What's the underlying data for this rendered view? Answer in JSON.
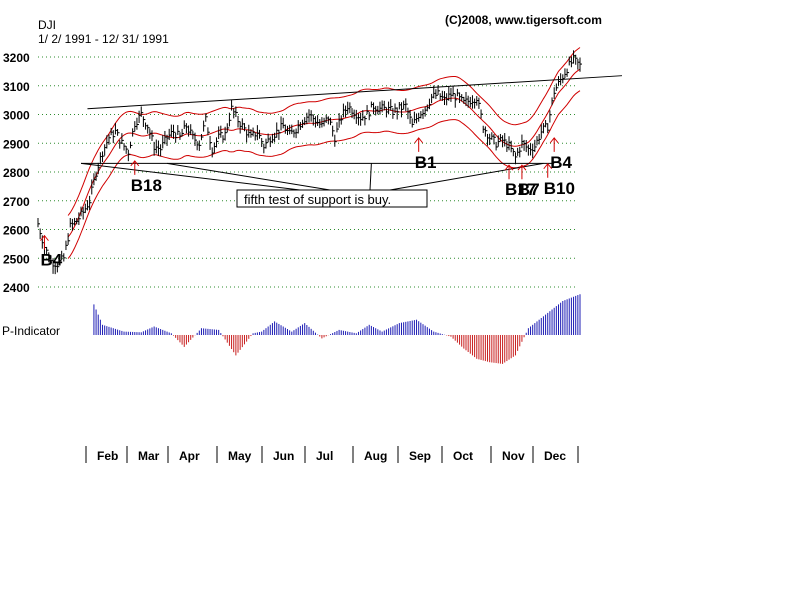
{
  "chart_data": {
    "type": "line",
    "symbol": "DJI",
    "date_range": "1/ 2/ 1991 - 12/ 31/ 1991",
    "copyright": "(C)2008, www.tigersoft.com",
    "ylim": [
      2370,
      3220
    ],
    "y_ticks": [
      2400,
      2500,
      2600,
      2700,
      2800,
      2900,
      3000,
      3100,
      3200
    ],
    "months": [
      "Feb",
      "Mar",
      "Apr",
      "May",
      "Jun",
      "Jul",
      "Aug",
      "Sep",
      "Oct",
      "Nov",
      "Dec"
    ],
    "grid": true,
    "series": [
      {
        "name": "DJI close",
        "x": [
          0,
          3,
          6,
          9,
          12,
          15,
          18,
          21,
          24,
          27,
          30,
          33,
          36,
          39,
          42,
          45,
          48,
          51,
          54,
          57,
          60,
          63,
          66,
          69,
          72,
          75,
          78,
          81,
          84,
          87,
          90,
          93,
          96,
          99,
          102,
          105,
          108,
          111,
          114,
          117,
          120,
          123,
          126,
          129,
          132,
          135,
          138,
          141,
          144,
          147,
          150,
          153,
          156,
          159,
          162,
          165,
          168,
          171,
          174,
          177,
          180,
          183,
          186,
          189,
          192,
          195,
          198,
          201,
          204,
          207,
          210,
          213,
          216,
          219,
          222,
          225,
          228,
          231,
          234,
          237,
          240,
          243,
          246,
          249,
          252
        ],
        "values": [
          2620,
          2540,
          2490,
          2480,
          2500,
          2610,
          2630,
          2660,
          2700,
          2800,
          2870,
          2920,
          2940,
          2900,
          2870,
          2970,
          3000,
          2960,
          2890,
          2880,
          2920,
          2940,
          2920,
          2960,
          2920,
          2900,
          2980,
          2880,
          2920,
          2930,
          3020,
          2980,
          2950,
          2920,
          2940,
          2890,
          2920,
          2940,
          2960,
          2930,
          2950,
          2980,
          3000,
          2980,
          2960,
          2990,
          2920,
          2990,
          3030,
          3010,
          2990,
          3000,
          3030,
          3020,
          3020,
          3010,
          3020,
          3030,
          2960,
          3000,
          3020,
          3060,
          3070,
          3050,
          3070,
          3060,
          3040,
          3050,
          3060,
          2960,
          2920,
          2900,
          2910,
          2890,
          2850,
          2900,
          2880,
          2890,
          2940,
          2960,
          3080,
          3120,
          3160,
          3190,
          3170
        ]
      },
      {
        "name": "P-Indicator",
        "x": [
          0,
          8,
          12,
          16,
          20,
          26,
          30,
          40,
          48,
          54,
          58,
          62,
          68,
          76,
          84,
          92,
          100,
          104,
          110,
          118,
          124,
          132,
          140,
          148,
          154,
          160,
          168,
          176,
          184,
          192,
          198,
          204,
          210,
          216,
          222,
          228,
          234,
          240,
          244,
          248,
          252
        ],
        "values": [
          0,
          0,
          130,
          150,
          120,
          90,
          30,
          10,
          8,
          25,
          15,
          5,
          -35,
          20,
          15,
          -60,
          5,
          10,
          40,
          10,
          35,
          -10,
          15,
          5,
          30,
          10,
          35,
          45,
          10,
          -5,
          -40,
          -70,
          -80,
          -85,
          -60,
          20,
          50,
          80,
          100,
          110,
          120
        ]
      }
    ],
    "annotations": {
      "signals": [
        {
          "label": "B4",
          "x": 3,
          "y": 2530
        },
        {
          "label": "B18",
          "x": 45,
          "y": 2790
        },
        {
          "label": "B1",
          "x": 177,
          "y": 2870
        },
        {
          "label": "B17",
          "x": 219,
          "y": 2775
        },
        {
          "label": "B7",
          "x": 225,
          "y": 2775
        },
        {
          "label": "B10",
          "x": 237,
          "y": 2780
        },
        {
          "label": "B4",
          "x": 240,
          "y": 2870
        }
      ],
      "callout": "fifth test of support is buy.",
      "p_indicator_label": "P-Indicator"
    }
  },
  "labels": {
    "symbol": "DJI",
    "date_range": "1/ 2/ 1991 - 12/ 31/ 1991",
    "copyright": "(C)2008, www.tigersoft.com",
    "p_indicator": "P-Indicator",
    "callout": "fifth test of support is buy."
  }
}
